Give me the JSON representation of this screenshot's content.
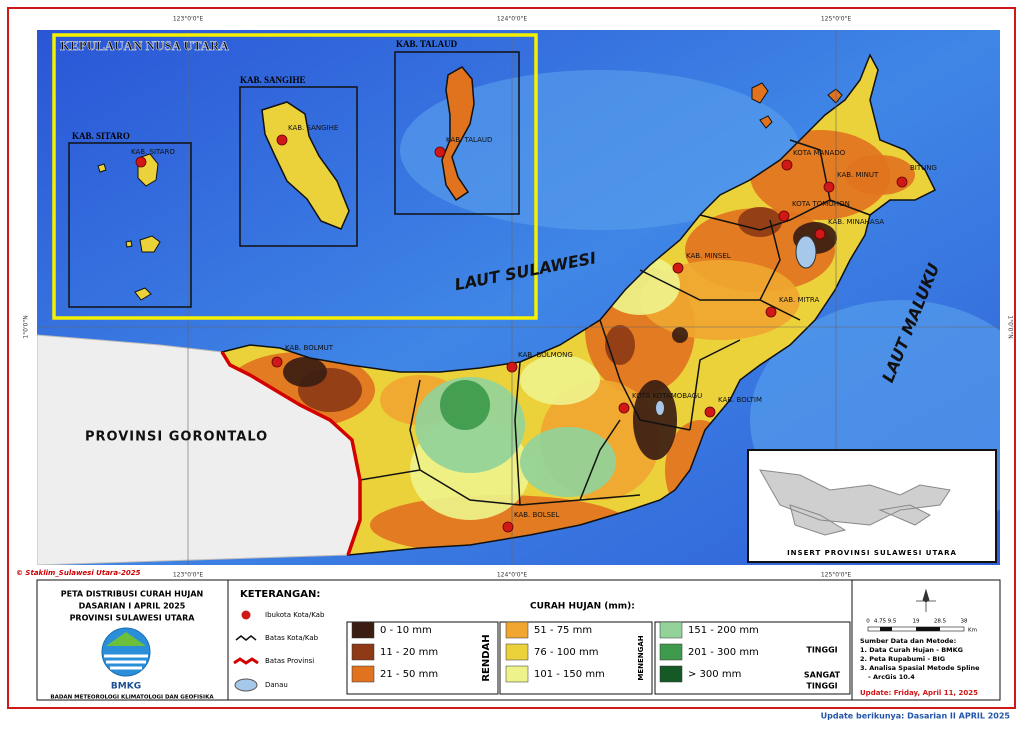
{
  "map": {
    "graticule": {
      "lon": [
        "123°0'0\"E",
        "124°0'0\"E",
        "125°0'0\"E"
      ],
      "lat": "1°0'0\"N"
    },
    "region_title": "KEPULAUAN NUSA UTARA",
    "inset_boxes": [
      "KAB. SITARO",
      "KAB. SANGIHE",
      "KAB. TALAUD"
    ],
    "cities": [
      "KAB. SITARO",
      "KAB. SANGIHE",
      "KAB. TALAUD",
      "KOTA MANADO",
      "KAB. MINUT",
      "BITUNG",
      "KOTA TOMOHON",
      "KAB. MINAHASA",
      "KAB. MINSEL",
      "KAB. MITRA",
      "KAB. BOLMUT",
      "KAB. BOLMONG",
      "KOTA KOTAMOBAGU",
      "KAB. BOLTIM",
      "KAB. BOLSEL"
    ],
    "seas": [
      "LAUT SULAWESI",
      "LAUT MALUKU"
    ],
    "neighbor": "PROVINSI GORONTALO",
    "credit": "© Staklim_Sulawesi Utara-2025",
    "insert_label": "INSERT PROVINSI SULAWESI UTARA"
  },
  "title_block": {
    "lines": [
      "PETA DISTRIBUSI CURAH HUJAN",
      "DASARIAN I APRIL 2025",
      "PROVINSI SULAWESI UTARA"
    ],
    "logo_text": "BMKG",
    "agency": "BADAN METEOROLOGI KLIMATOLOGI DAN GEOFISIKA"
  },
  "legend": {
    "heading": "KETERANGAN:",
    "symbols": [
      "Ibukota Kota/Kab",
      "Batas Kota/Kab",
      "Batas Provinsi",
      "Danau"
    ],
    "rain_heading": "CURAH HUJAN (mm):",
    "classes": [
      {
        "label": "0 - 10 mm",
        "color": "#3b1d12"
      },
      {
        "label": "11 - 20 mm",
        "color": "#8e3a17"
      },
      {
        "label": "21 - 50 mm",
        "color": "#e1731f"
      },
      {
        "label": "51 - 75 mm",
        "color": "#f0a631"
      },
      {
        "label": "76 - 100 mm",
        "color": "#ecd23a"
      },
      {
        "label": "101 - 150 mm",
        "color": "#eef28a"
      },
      {
        "label": "151 - 200 mm",
        "color": "#93d39a"
      },
      {
        "label": "201 - 300 mm",
        "color": "#3e9a4c"
      },
      {
        "label": "> 300 mm",
        "color": "#155a26"
      }
    ],
    "groups": {
      "rendah": "RENDAH",
      "menengah": "MENENGAH",
      "tinggi": "TINGGI",
      "sangat_tinggi": [
        "SANGAT",
        "TINGGI"
      ]
    }
  },
  "info": {
    "scale_ticks": [
      "0",
      "4.75",
      "9.5",
      "19",
      "28.5",
      "38"
    ],
    "scale_unit": "Km",
    "sources": [
      "Sumber Data dan Metode:",
      "1. Data Curah Hujan - BMKG",
      "2. Peta Rupabumi - BIG",
      "3. Analisa Spasial Metode Spline",
      "- ArcGis 10.4"
    ],
    "update": "Update: Friday, April 11, 2025",
    "next_update": "Update berikunya: Dasarian II APRIL 2025"
  }
}
